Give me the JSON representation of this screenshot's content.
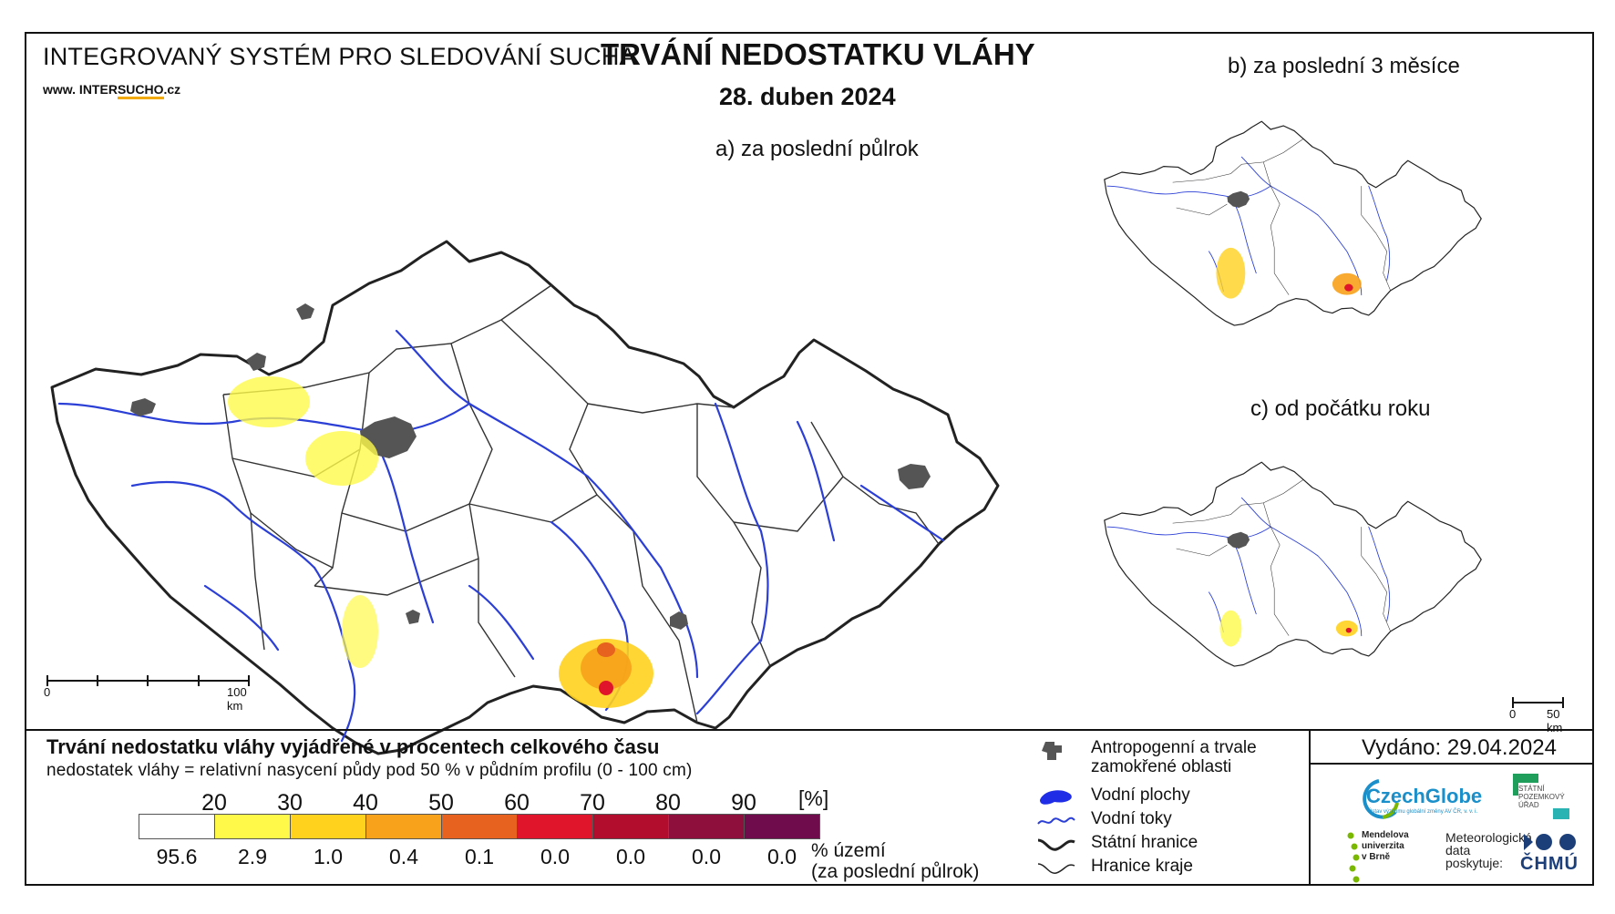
{
  "header": {
    "system_title": "INTEGROVANÝ SYSTÉM PRO SLEDOVÁNÍ SUCHA",
    "website_prefix": "www. INTER",
    "website_highlight": "SUCHO",
    "website_suffix": ".cz",
    "main_title": "TRVÁNÍ NEDOSTATKU VLÁHY",
    "date": "28. duben 2024"
  },
  "maps": {
    "main_label": "a) za poslední půlrok",
    "b_label": "b) za poslední 3 měsíce",
    "c_label": "c) od počátku roku",
    "main_scale": {
      "start": "0",
      "end": "100 km"
    },
    "small_scale": {
      "start": "0",
      "end": "50 km"
    }
  },
  "legend": {
    "title": "Trvání nedostatku vláhy vyjádřené v procentech celkového času",
    "subtitle": "nedostatek vláhy = relativní nasycení půdy pod 50 % v půdním profilu (0 - 100 cm)",
    "unit": "[%]",
    "class_edges": [
      "20",
      "30",
      "40",
      "50",
      "60",
      "70",
      "80",
      "90"
    ],
    "class_colors": [
      "#ffffff",
      "#fffa4a",
      "#ffd21e",
      "#f7a21a",
      "#e6621e",
      "#e0142a",
      "#b30d2e",
      "#8e0f3c",
      "#6e0c4c"
    ],
    "class_percentages": [
      "95.6",
      "2.9",
      "1.0",
      "0.4",
      "0.1",
      "0.0",
      "0.0",
      "0.0",
      "0.0"
    ],
    "pct_label": "% území",
    "pct_period": "(za poslední půlrok)"
  },
  "symbols": {
    "items": [
      {
        "label": "Antropogenní a trvale",
        "label2": "zamokřené oblasti",
        "icon": "urban-area-icon"
      },
      {
        "label": "Vodní plochy",
        "icon": "water-body-icon"
      },
      {
        "label": "Vodní toky",
        "icon": "river-icon"
      },
      {
        "label": "Státní hranice",
        "icon": "state-border-icon"
      },
      {
        "label": "Hranice kraje",
        "icon": "region-border-icon"
      }
    ]
  },
  "footer": {
    "issued": "Vydáno: 29.04.2024",
    "czechglobe": "CzechGlobe",
    "czechglobe_sub": "Ústav výzkumu globální změny AV ČR, v. v. i.",
    "spu_line1": "STÁTNÍ",
    "spu_line2": "POZEMKOVÝ",
    "spu_line3": "ÚŘAD",
    "mu_line1": "Mendelova",
    "mu_line2": "univerzita",
    "mu_line3": "v Brně",
    "met_line1": "Meteorologická",
    "met_line2": "data",
    "met_line3": "poskytuje:",
    "chmu": "ČHMÚ"
  },
  "colors": {
    "river": "#2b3fd6",
    "urban": "#555555",
    "border": "#222222",
    "czechglobe": "#1a8fc9",
    "spu": "#1e9e5a",
    "mendelu": "#7ab800",
    "chmu": "#1c3f7a"
  }
}
